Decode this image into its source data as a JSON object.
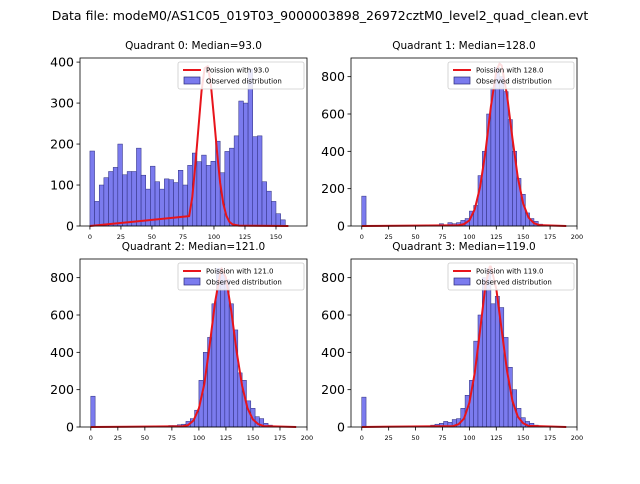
{
  "suptitle": "Data file: modeM0/AS1C05_019T03_9000003898_26972cztM0_level2_quad_clean.evt",
  "colors": {
    "bar_fill": "#7b7bee",
    "bar_edge": "#2a2a7a",
    "curve": "#e8141b",
    "axis": "#000000"
  },
  "chart_data": [
    {
      "type": "bar",
      "title": "Quadrant 0: Median=93.0",
      "median": 93.0,
      "xlim": [
        -8,
        175
      ],
      "ylim": [
        0,
        410
      ],
      "xticks": [
        0,
        25,
        50,
        75,
        100,
        125,
        150
      ],
      "yticks": [
        0,
        100,
        200,
        300,
        400
      ],
      "legend": {
        "position": "top-right",
        "entries": [
          "Poission with 93.0",
          "Observed distribution"
        ]
      },
      "bin_width": 3.75,
      "bins": [
        [
          0,
          183
        ],
        [
          3.75,
          60
        ],
        [
          7.5,
          100
        ],
        [
          11.25,
          118
        ],
        [
          15,
          133
        ],
        [
          18.75,
          143
        ],
        [
          22.5,
          200
        ],
        [
          26.25,
          125
        ],
        [
          30,
          133
        ],
        [
          33.75,
          133
        ],
        [
          37.5,
          190
        ],
        [
          41.25,
          124
        ],
        [
          45,
          90
        ],
        [
          48.75,
          146
        ],
        [
          52.5,
          108
        ],
        [
          56.25,
          90
        ],
        [
          60,
          115
        ],
        [
          63.75,
          113
        ],
        [
          67.5,
          106
        ],
        [
          71.25,
          136
        ],
        [
          75,
          100
        ],
        [
          78.75,
          148
        ],
        [
          82.5,
          178
        ],
        [
          86.25,
          157
        ],
        [
          90,
          173
        ],
        [
          93.75,
          148
        ],
        [
          97.5,
          158
        ],
        [
          101.25,
          207
        ],
        [
          105,
          130
        ],
        [
          108.75,
          182
        ],
        [
          112.5,
          190
        ],
        [
          116.25,
          220
        ],
        [
          120,
          305
        ],
        [
          123.75,
          300
        ],
        [
          127.5,
          383
        ],
        [
          131.25,
          218
        ],
        [
          135,
          220
        ],
        [
          138.75,
          108
        ],
        [
          142.5,
          85
        ],
        [
          146.25,
          60
        ],
        [
          150,
          30
        ],
        [
          153.75,
          15
        ]
      ],
      "poisson_curve": [
        [
          80,
          24
        ],
        [
          82.5,
          70
        ],
        [
          85,
          150
        ],
        [
          87.5,
          240
        ],
        [
          90,
          330
        ],
        [
          92.5,
          385
        ],
        [
          95,
          390
        ],
        [
          97.5,
          345
        ],
        [
          100,
          265
        ],
        [
          102.5,
          180
        ],
        [
          105,
          105
        ],
        [
          107.5,
          55
        ],
        [
          110,
          25
        ],
        [
          112.5,
          10
        ],
        [
          115,
          4
        ],
        [
          120,
          1
        ]
      ],
      "curve_x_range": [
        0,
        160
      ]
    },
    {
      "type": "bar",
      "title": "Quadrant 1: Median=128.0",
      "median": 128.0,
      "xlim": [
        -10,
        200
      ],
      "ylim": [
        0,
        900
      ],
      "xticks": [
        0,
        25,
        50,
        75,
        100,
        125,
        150,
        175,
        200
      ],
      "yticks": [
        0,
        200,
        400,
        600,
        800
      ],
      "legend": {
        "position": "top-right",
        "entries": [
          "Poission with 128.0",
          "Observed distribution"
        ]
      },
      "bin_width": 4,
      "bins": [
        [
          0,
          160
        ],
        [
          72,
          12
        ],
        [
          80,
          18
        ],
        [
          84,
          12
        ],
        [
          88,
          18
        ],
        [
          92,
          30
        ],
        [
          96,
          40
        ],
        [
          100,
          80
        ],
        [
          104,
          110
        ],
        [
          108,
          270
        ],
        [
          112,
          400
        ],
        [
          116,
          600
        ],
        [
          120,
          740
        ],
        [
          124,
          850
        ],
        [
          128,
          800
        ],
        [
          132,
          720
        ],
        [
          136,
          570
        ],
        [
          140,
          400
        ],
        [
          144,
          255
        ],
        [
          148,
          170
        ],
        [
          152,
          70
        ],
        [
          156,
          40
        ],
        [
          160,
          25
        ],
        [
          164,
          10
        ],
        [
          168,
          6
        ]
      ],
      "poisson_curve": [
        [
          90,
          4
        ],
        [
          95,
          10
        ],
        [
          100,
          30
        ],
        [
          105,
          90
        ],
        [
          110,
          210
        ],
        [
          115,
          400
        ],
        [
          120,
          640
        ],
        [
          125,
          830
        ],
        [
          128,
          870
        ],
        [
          130,
          860
        ],
        [
          135,
          700
        ],
        [
          140,
          470
        ],
        [
          145,
          260
        ],
        [
          150,
          120
        ],
        [
          155,
          45
        ],
        [
          160,
          15
        ],
        [
          165,
          5
        ]
      ],
      "curve_x_range": [
        0,
        190
      ]
    },
    {
      "type": "bar",
      "title": "Quadrant 2: Median=121.0",
      "median": 121.0,
      "xlim": [
        -10,
        200
      ],
      "ylim": [
        0,
        900
      ],
      "xticks": [
        0,
        25,
        50,
        75,
        100,
        125,
        150,
        175,
        200
      ],
      "yticks": [
        0,
        200,
        400,
        600,
        800
      ],
      "legend": {
        "position": "top-right",
        "entries": [
          "Poission with 121.0",
          "Observed distribution"
        ]
      },
      "bin_width": 4,
      "bins": [
        [
          0,
          165
        ],
        [
          68,
          5
        ],
        [
          72,
          8
        ],
        [
          76,
          8
        ],
        [
          80,
          12
        ],
        [
          84,
          15
        ],
        [
          88,
          30
        ],
        [
          92,
          45
        ],
        [
          96,
          90
        ],
        [
          100,
          250
        ],
        [
          104,
          400
        ],
        [
          108,
          480
        ],
        [
          112,
          660
        ],
        [
          116,
          850
        ],
        [
          120,
          830
        ],
        [
          124,
          790
        ],
        [
          128,
          660
        ],
        [
          132,
          520
        ],
        [
          136,
          290
        ],
        [
          140,
          250
        ],
        [
          144,
          140
        ],
        [
          148,
          100
        ],
        [
          152,
          55
        ],
        [
          156,
          45
        ],
        [
          160,
          20
        ],
        [
          164,
          10
        ],
        [
          168,
          5
        ]
      ],
      "poisson_curve": [
        [
          85,
          4
        ],
        [
          90,
          10
        ],
        [
          95,
          35
        ],
        [
          100,
          100
        ],
        [
          105,
          230
        ],
        [
          110,
          440
        ],
        [
          115,
          670
        ],
        [
          120,
          830
        ],
        [
          121,
          850
        ],
        [
          125,
          800
        ],
        [
          130,
          620
        ],
        [
          135,
          400
        ],
        [
          140,
          220
        ],
        [
          145,
          100
        ],
        [
          150,
          40
        ],
        [
          155,
          15
        ],
        [
          160,
          5
        ]
      ],
      "curve_x_range": [
        0,
        190
      ]
    },
    {
      "type": "bar",
      "title": "Quadrant 3: Median=119.0",
      "median": 119.0,
      "xlim": [
        -10,
        200
      ],
      "ylim": [
        0,
        900
      ],
      "xticks": [
        0,
        25,
        50,
        75,
        100,
        125,
        150,
        175,
        200
      ],
      "yticks": [
        0,
        200,
        400,
        600,
        800
      ],
      "legend": {
        "position": "top-right",
        "entries": [
          "Poission with 119.0",
          "Observed distribution"
        ]
      },
      "bin_width": 4,
      "bins": [
        [
          0,
          160
        ],
        [
          64,
          10
        ],
        [
          68,
          15
        ],
        [
          72,
          20
        ],
        [
          76,
          30
        ],
        [
          80,
          25
        ],
        [
          84,
          40
        ],
        [
          88,
          45
        ],
        [
          92,
          100
        ],
        [
          96,
          170
        ],
        [
          100,
          250
        ],
        [
          104,
          460
        ],
        [
          108,
          600
        ],
        [
          112,
          800
        ],
        [
          116,
          850
        ],
        [
          120,
          660
        ],
        [
          124,
          700
        ],
        [
          128,
          640
        ],
        [
          132,
          480
        ],
        [
          136,
          320
        ],
        [
          140,
          200
        ],
        [
          144,
          100
        ],
        [
          148,
          50
        ],
        [
          152,
          30
        ],
        [
          156,
          20
        ],
        [
          160,
          10
        ],
        [
          164,
          5
        ]
      ],
      "poisson_curve": [
        [
          85,
          5
        ],
        [
          90,
          15
        ],
        [
          95,
          45
        ],
        [
          100,
          130
        ],
        [
          105,
          290
        ],
        [
          110,
          520
        ],
        [
          115,
          760
        ],
        [
          119,
          860
        ],
        [
          120,
          860
        ],
        [
          125,
          740
        ],
        [
          130,
          520
        ],
        [
          135,
          300
        ],
        [
          140,
          140
        ],
        [
          145,
          55
        ],
        [
          150,
          20
        ],
        [
          155,
          6
        ]
      ],
      "curve_x_range": [
        0,
        190
      ]
    }
  ]
}
